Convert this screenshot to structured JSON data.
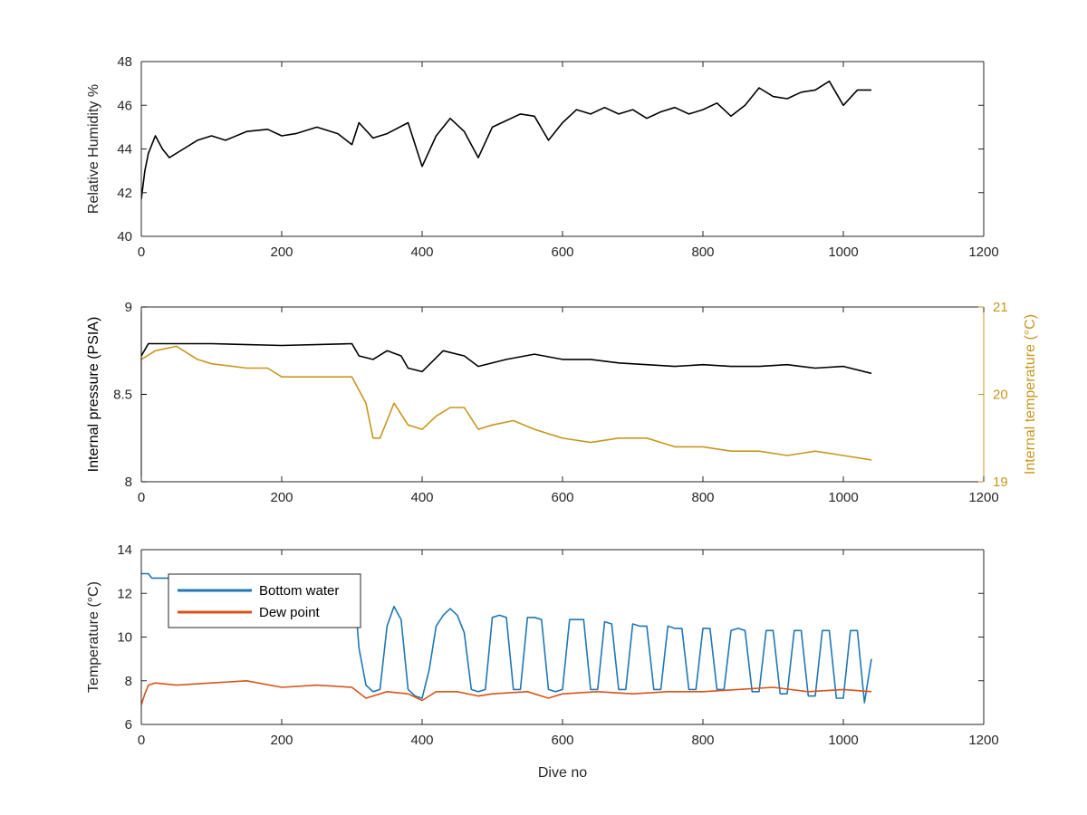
{
  "chart_data": [
    {
      "type": "line",
      "ylabel": "Relative Humidity %",
      "xlim": [
        0,
        1200
      ],
      "ylim": [
        40,
        48
      ],
      "xticks": [
        0,
        200,
        400,
        600,
        800,
        1000,
        1200
      ],
      "yticks": [
        40,
        42,
        44,
        46,
        48
      ],
      "series": [
        {
          "color": "#000000",
          "x": [
            0,
            5,
            10,
            20,
            30,
            40,
            60,
            80,
            100,
            120,
            150,
            180,
            200,
            220,
            250,
            280,
            300,
            310,
            330,
            350,
            380,
            400,
            420,
            440,
            460,
            480,
            500,
            540,
            560,
            580,
            600,
            620,
            640,
            660,
            680,
            700,
            720,
            740,
            760,
            780,
            800,
            820,
            840,
            860,
            880,
            900,
            920,
            940,
            960,
            980,
            1000,
            1020,
            1040
          ],
          "values": [
            41.7,
            43.0,
            43.8,
            44.6,
            44.0,
            43.6,
            44.0,
            44.4,
            44.6,
            44.4,
            44.8,
            44.9,
            44.6,
            44.7,
            45.0,
            44.7,
            44.2,
            45.2,
            44.5,
            44.7,
            45.2,
            43.2,
            44.6,
            45.4,
            44.8,
            43.6,
            45.0,
            45.6,
            45.5,
            44.4,
            45.2,
            45.8,
            45.6,
            45.9,
            45.6,
            45.8,
            45.4,
            45.7,
            45.9,
            45.6,
            45.8,
            46.1,
            45.5,
            46.0,
            46.8,
            46.4,
            46.3,
            46.6,
            46.7,
            47.1,
            46.0,
            46.7,
            46.7
          ]
        }
      ]
    },
    {
      "type": "line",
      "ylabel": "Internal pressure (PSIA)",
      "y2label": "Internal temperature (°C)",
      "xlim": [
        0,
        1200
      ],
      "ylim": [
        8,
        9
      ],
      "y2lim": [
        19,
        21
      ],
      "xticks": [
        0,
        200,
        400,
        600,
        800,
        1000,
        1200
      ],
      "yticks": [
        8,
        8.5,
        9
      ],
      "y2ticks": [
        19,
        20,
        21
      ],
      "series": [
        {
          "axis": "left",
          "color": "#000000",
          "x": [
            0,
            10,
            50,
            100,
            200,
            300,
            310,
            330,
            350,
            370,
            380,
            400,
            430,
            460,
            480,
            520,
            560,
            600,
            640,
            680,
            720,
            760,
            800,
            840,
            880,
            920,
            960,
            1000,
            1040
          ],
          "values": [
            8.72,
            8.79,
            8.79,
            8.79,
            8.78,
            8.79,
            8.72,
            8.7,
            8.75,
            8.72,
            8.65,
            8.63,
            8.75,
            8.72,
            8.66,
            8.7,
            8.73,
            8.7,
            8.7,
            8.68,
            8.67,
            8.66,
            8.67,
            8.66,
            8.66,
            8.67,
            8.65,
            8.66,
            8.62
          ]
        },
        {
          "axis": "right",
          "color": "#c8961e",
          "x": [
            0,
            20,
            50,
            80,
            100,
            150,
            180,
            200,
            220,
            240,
            280,
            300,
            320,
            330,
            340,
            350,
            360,
            380,
            400,
            420,
            440,
            460,
            480,
            500,
            530,
            560,
            600,
            640,
            680,
            720,
            760,
            800,
            840,
            880,
            920,
            960,
            1000,
            1040
          ],
          "values": [
            20.4,
            20.5,
            20.55,
            20.4,
            20.35,
            20.3,
            20.3,
            20.2,
            20.2,
            20.2,
            20.2,
            20.2,
            19.9,
            19.5,
            19.5,
            19.7,
            19.9,
            19.65,
            19.6,
            19.75,
            19.85,
            19.85,
            19.6,
            19.65,
            19.7,
            19.6,
            19.5,
            19.45,
            19.5,
            19.5,
            19.4,
            19.4,
            19.35,
            19.35,
            19.3,
            19.35,
            19.3,
            19.25
          ]
        }
      ]
    },
    {
      "type": "line",
      "xlabel": "Dive no",
      "ylabel": "Temperature (°C)",
      "xlim": [
        0,
        1200
      ],
      "ylim": [
        6,
        14
      ],
      "xticks": [
        0,
        200,
        400,
        600,
        800,
        1000,
        1200
      ],
      "yticks": [
        6,
        8,
        10,
        12,
        14
      ],
      "legend_position": "top-left",
      "series": [
        {
          "name": "Bottom water",
          "color": "#1f77b4",
          "x": [
            0,
            10,
            15,
            20,
            40,
            300,
            305,
            310,
            320,
            330,
            340,
            350,
            360,
            370,
            380,
            390,
            400,
            410,
            420,
            430,
            440,
            450,
            460,
            470,
            480,
            490,
            500,
            510,
            520,
            530,
            540,
            550,
            560,
            570,
            580,
            590,
            600,
            610,
            620,
            630,
            640,
            650,
            660,
            670,
            680,
            690,
            700,
            710,
            720,
            730,
            740,
            750,
            760,
            770,
            780,
            790,
            800,
            810,
            820,
            830,
            840,
            850,
            860,
            870,
            880,
            890,
            900,
            910,
            920,
            930,
            940,
            950,
            960,
            970,
            980,
            990,
            1000,
            1010,
            1020,
            1030,
            1040
          ],
          "values": [
            12.9,
            12.9,
            12.7,
            12.7,
            12.7,
            12.6,
            11.5,
            9.5,
            7.8,
            7.5,
            7.6,
            10.5,
            11.4,
            10.8,
            7.6,
            7.3,
            7.2,
            8.5,
            10.5,
            11.0,
            11.3,
            11.0,
            10.2,
            7.6,
            7.5,
            7.6,
            10.9,
            11.0,
            10.9,
            7.6,
            7.6,
            10.9,
            10.9,
            10.8,
            7.6,
            7.5,
            7.6,
            10.8,
            10.8,
            10.8,
            7.6,
            7.6,
            10.7,
            10.6,
            7.6,
            7.6,
            10.6,
            10.5,
            10.5,
            7.6,
            7.6,
            10.5,
            10.4,
            10.4,
            7.6,
            7.6,
            10.4,
            10.4,
            7.6,
            7.6,
            10.3,
            10.4,
            10.3,
            7.5,
            7.5,
            10.3,
            10.3,
            7.4,
            7.4,
            10.3,
            10.3,
            7.3,
            7.3,
            10.3,
            10.3,
            7.2,
            7.2,
            10.3,
            10.3,
            7.0,
            9.0
          ]
        },
        {
          "name": "Dew point",
          "color": "#d95319",
          "x": [
            0,
            5,
            10,
            20,
            50,
            100,
            150,
            200,
            250,
            300,
            320,
            350,
            380,
            400,
            420,
            450,
            480,
            500,
            550,
            580,
            600,
            650,
            700,
            750,
            800,
            850,
            900,
            950,
            1000,
            1040
          ],
          "values": [
            6.9,
            7.4,
            7.8,
            7.9,
            7.8,
            7.9,
            8.0,
            7.7,
            7.8,
            7.7,
            7.2,
            7.5,
            7.4,
            7.1,
            7.5,
            7.5,
            7.3,
            7.4,
            7.5,
            7.2,
            7.4,
            7.5,
            7.4,
            7.5,
            7.5,
            7.6,
            7.7,
            7.5,
            7.6,
            7.5
          ]
        }
      ]
    }
  ]
}
